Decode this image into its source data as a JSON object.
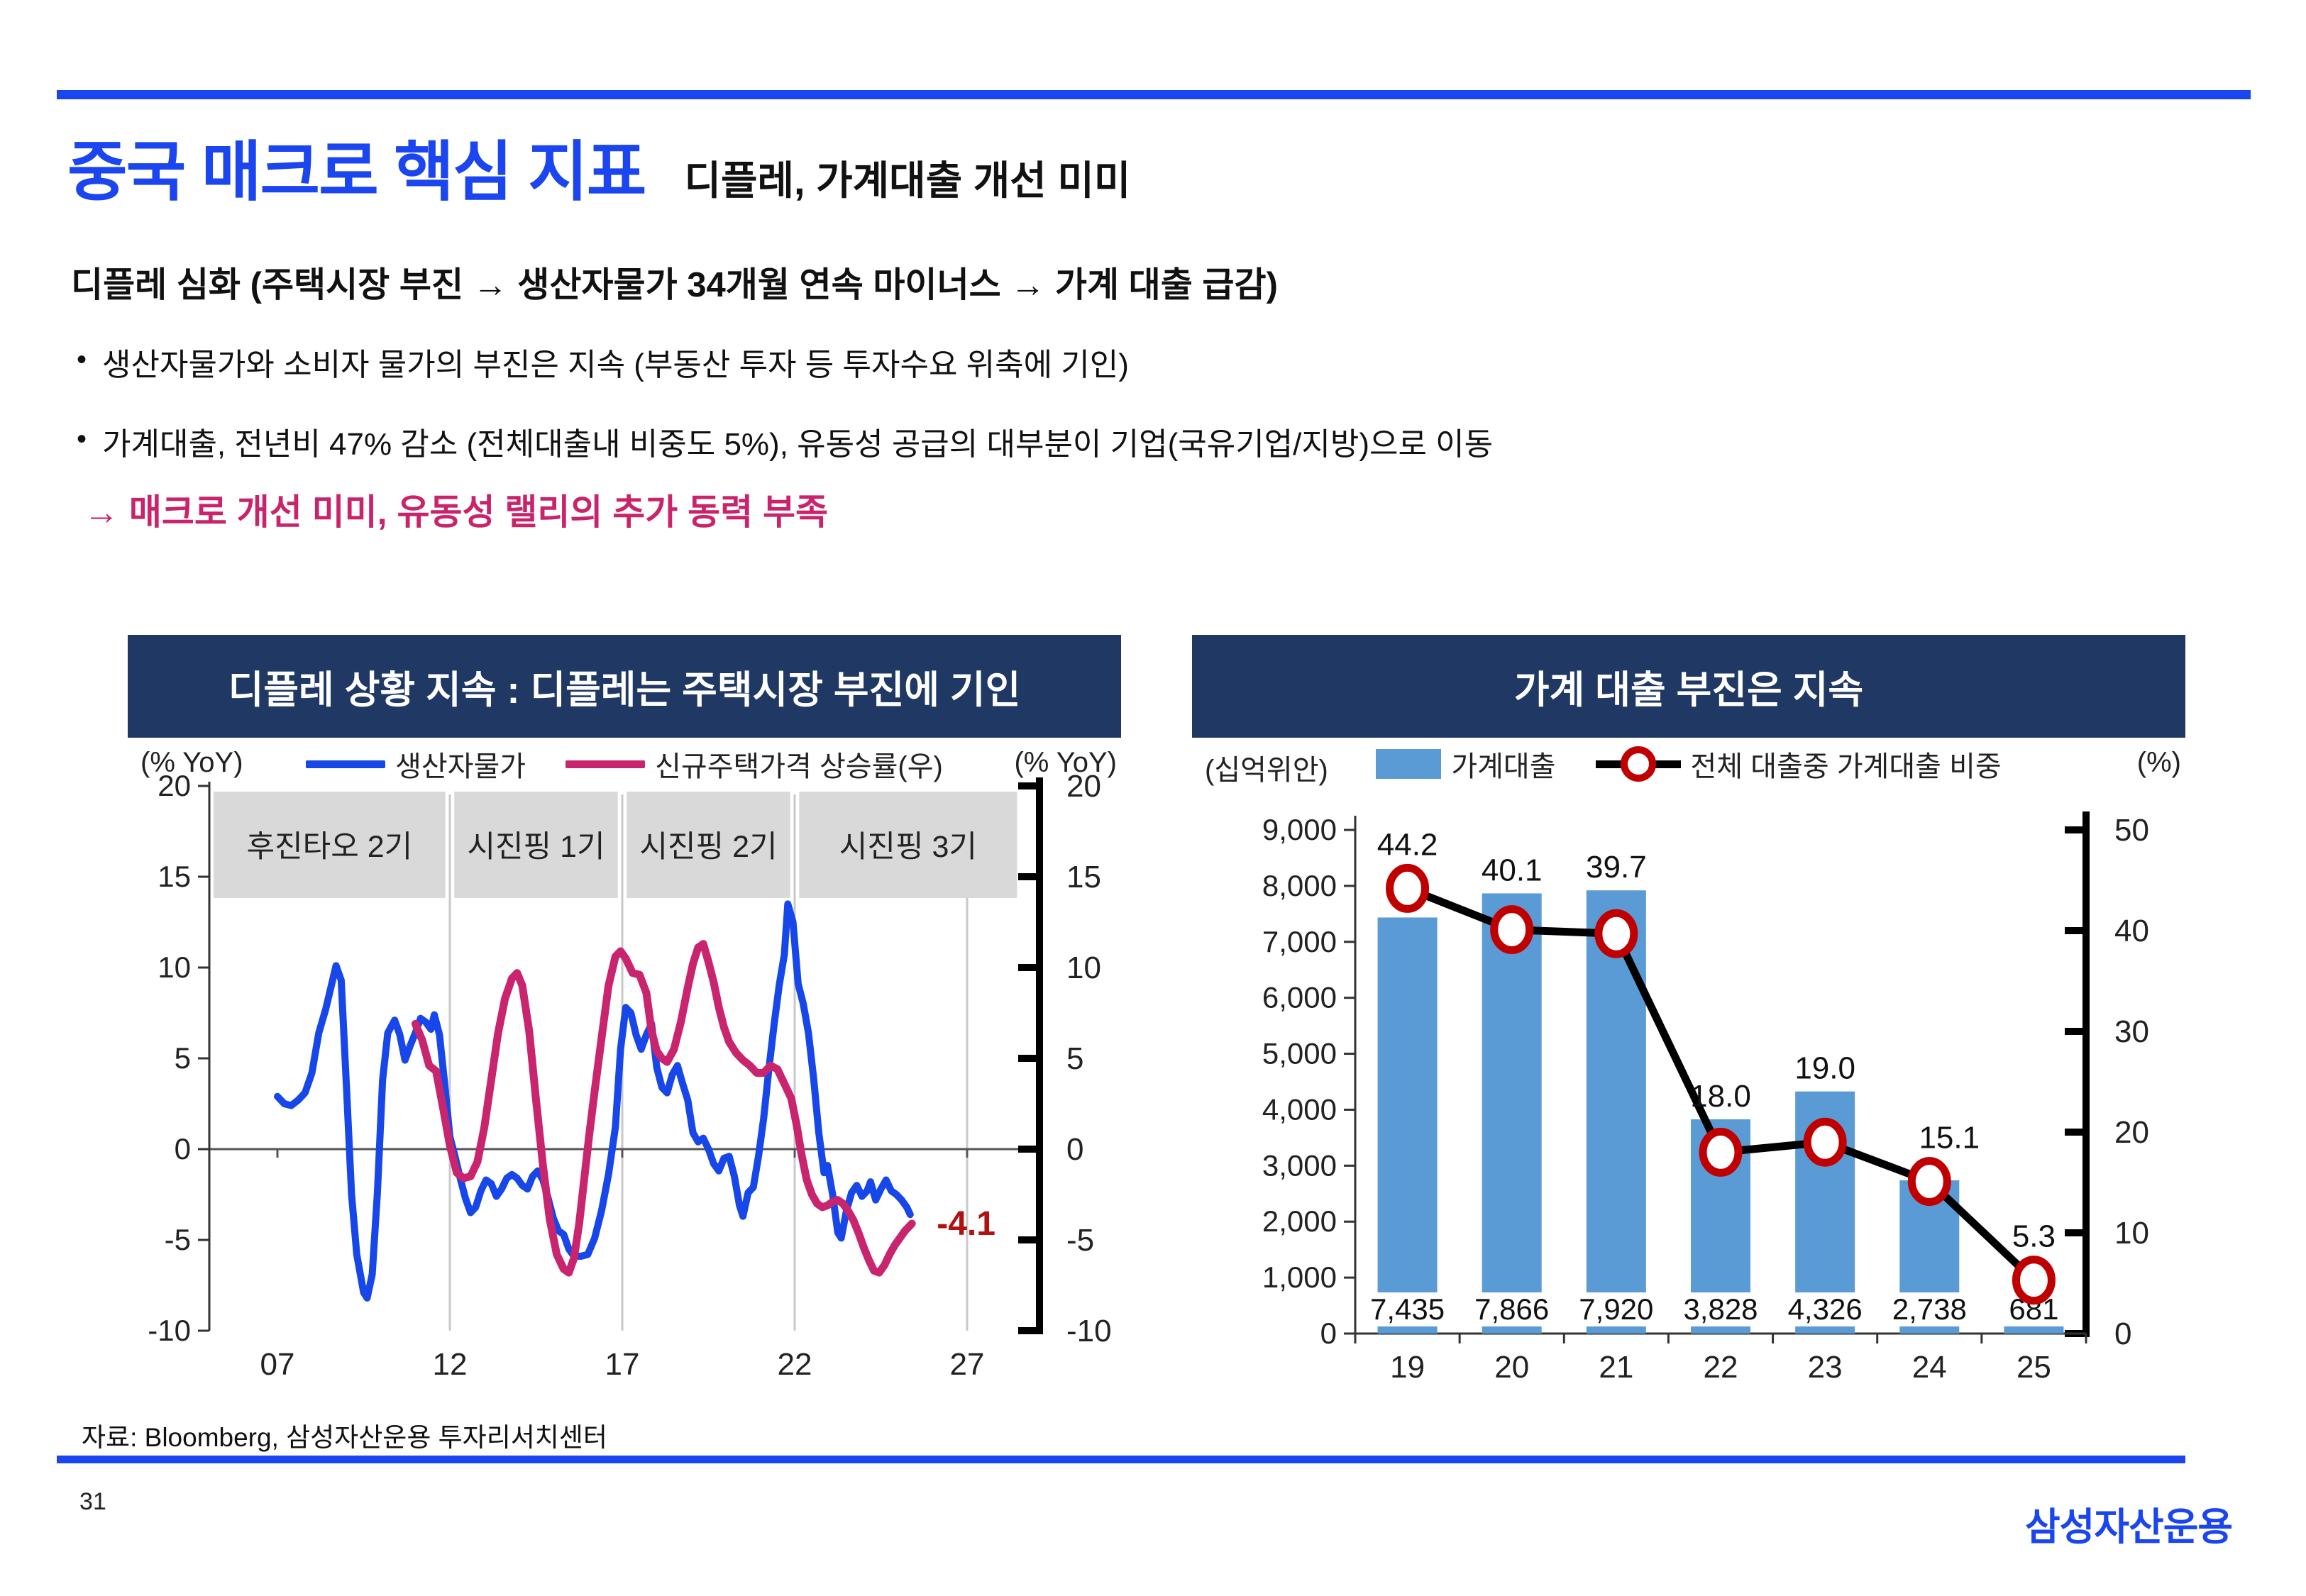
{
  "page": {
    "number": "31",
    "title": "중국 매크로 핵심 지표",
    "subtitle": "디플레, 가계대출 개선 미미",
    "heading": "디플레 심화 (주택시장 부진 → 생산자물가 34개월 연속 마이너스 → 가계 대출 급감)",
    "bullet_marker": "•",
    "bullets": [
      "생산자물가와 소비자 물가의 부진은 지속 (부동산 투자 등 투자수요 위축에 기인)",
      "가계대출, 전년비 47% 감소 (전체대출내 비중도 5%), 유동성 공급의 대부분이 기업(국유기업/지방)으로 이동"
    ],
    "arrow_note": "→ 매크로 개선 미미, 유동성 랠리의 추가 동력 부족",
    "source": "자료: Bloomberg, 삼성자산운용 투자리서치센터",
    "logo": "삼성자산운용"
  },
  "colors": {
    "accent_blue": "#1b45ee",
    "header_navy": "#203864",
    "ppi_blue": "#1747e8",
    "home_price_pink": "#c9246e",
    "bar_blue": "#5b9bd5",
    "marker_red": "#c00000",
    "grid_gray": "#c9c9c9",
    "band_gray": "#d9d9d9",
    "end_label_red": "#b01111"
  },
  "chart_data": [
    {
      "type": "line",
      "title": "디플레 상황 지속 : 디플레는 주택시장 부진에 기인",
      "unit_left": "(% YoY)",
      "unit_right": "(% YoY)",
      "ylim": [
        -10,
        20
      ],
      "y_ticks": [
        "20",
        "15",
        "10",
        "5",
        "0",
        "-5",
        "-10"
      ],
      "y_tick_values": [
        20,
        15,
        10,
        5,
        0,
        -5,
        -10
      ],
      "x_ticks": [
        "07",
        "12",
        "17",
        "22",
        "27"
      ],
      "x_tick_years": [
        2007,
        2012,
        2017,
        2022,
        2027
      ],
      "grid_years": [
        2012,
        2017,
        2022,
        2027
      ],
      "period_bands": [
        {
          "label": "후진타오 2기",
          "from": 2005.15,
          "to": 2011.87
        },
        {
          "label": "시진핑 1기",
          "from": 2012.13,
          "to": 2016.87
        },
        {
          "label": "시진핑 2기",
          "from": 2017.13,
          "to": 2021.87
        },
        {
          "label": "시진핑 3기",
          "from": 2022.13,
          "to": 2028.45
        }
      ],
      "series": [
        {
          "name": "생산자물가",
          "color": "#1747e8",
          "points": [
            [
              2007.0,
              2.9
            ],
            [
              2007.2,
              2.5
            ],
            [
              2007.4,
              2.4
            ],
            [
              2007.6,
              2.7
            ],
            [
              2007.8,
              3.1
            ],
            [
              2008.0,
              4.2
            ],
            [
              2008.2,
              6.4
            ],
            [
              2008.4,
              7.7
            ],
            [
              2008.55,
              8.9
            ],
            [
              2008.7,
              10.1
            ],
            [
              2008.85,
              9.3
            ],
            [
              2009.0,
              3.5
            ],
            [
              2009.15,
              -2.5
            ],
            [
              2009.3,
              -5.8
            ],
            [
              2009.5,
              -7.9
            ],
            [
              2009.6,
              -8.2
            ],
            [
              2009.75,
              -6.9
            ],
            [
              2009.9,
              -2.4
            ],
            [
              2010.05,
              3.8
            ],
            [
              2010.2,
              6.4
            ],
            [
              2010.4,
              7.1
            ],
            [
              2010.55,
              6.3
            ],
            [
              2010.7,
              4.9
            ],
            [
              2010.85,
              5.7
            ],
            [
              2011.0,
              6.4
            ],
            [
              2011.15,
              7.2
            ],
            [
              2011.3,
              7.0
            ],
            [
              2011.45,
              6.6
            ],
            [
              2011.55,
              7.4
            ],
            [
              2011.7,
              6.3
            ],
            [
              2011.85,
              3.6
            ],
            [
              2012.0,
              0.7
            ],
            [
              2012.15,
              -0.4
            ],
            [
              2012.3,
              -1.6
            ],
            [
              2012.45,
              -2.7
            ],
            [
              2012.6,
              -3.5
            ],
            [
              2012.75,
              -3.2
            ],
            [
              2012.9,
              -2.3
            ],
            [
              2013.05,
              -1.7
            ],
            [
              2013.2,
              -1.9
            ],
            [
              2013.35,
              -2.6
            ],
            [
              2013.5,
              -2.2
            ],
            [
              2013.65,
              -1.6
            ],
            [
              2013.8,
              -1.4
            ],
            [
              2013.95,
              -1.6
            ],
            [
              2014.1,
              -2.0
            ],
            [
              2014.25,
              -2.2
            ],
            [
              2014.4,
              -1.5
            ],
            [
              2014.55,
              -1.2
            ],
            [
              2014.7,
              -1.7
            ],
            [
              2014.85,
              -2.7
            ],
            [
              2015.0,
              -3.8
            ],
            [
              2015.15,
              -4.5
            ],
            [
              2015.3,
              -4.7
            ],
            [
              2015.45,
              -5.5
            ],
            [
              2015.6,
              -5.9
            ],
            [
              2015.8,
              -5.9
            ],
            [
              2016.0,
              -5.8
            ],
            [
              2016.2,
              -4.9
            ],
            [
              2016.4,
              -3.4
            ],
            [
              2016.6,
              -1.4
            ],
            [
              2016.8,
              1.2
            ],
            [
              2016.95,
              5.5
            ],
            [
              2017.1,
              7.8
            ],
            [
              2017.25,
              7.5
            ],
            [
              2017.4,
              6.3
            ],
            [
              2017.55,
              5.5
            ],
            [
              2017.7,
              6.3
            ],
            [
              2017.85,
              6.9
            ],
            [
              2018.0,
              4.5
            ],
            [
              2018.15,
              3.4
            ],
            [
              2018.3,
              3.1
            ],
            [
              2018.45,
              4.1
            ],
            [
              2018.6,
              4.6
            ],
            [
              2018.75,
              3.6
            ],
            [
              2018.9,
              2.7
            ],
            [
              2019.05,
              0.9
            ],
            [
              2019.2,
              0.4
            ],
            [
              2019.35,
              0.6
            ],
            [
              2019.5,
              0.0
            ],
            [
              2019.65,
              -0.8
            ],
            [
              2019.8,
              -1.2
            ],
            [
              2019.95,
              -0.5
            ],
            [
              2020.1,
              -0.4
            ],
            [
              2020.25,
              -1.5
            ],
            [
              2020.4,
              -3.1
            ],
            [
              2020.5,
              -3.7
            ],
            [
              2020.65,
              -2.4
            ],
            [
              2020.8,
              -2.1
            ],
            [
              2020.95,
              -0.4
            ],
            [
              2021.1,
              1.7
            ],
            [
              2021.25,
              4.4
            ],
            [
              2021.4,
              6.8
            ],
            [
              2021.55,
              9.0
            ],
            [
              2021.7,
              10.7
            ],
            [
              2021.8,
              13.5
            ],
            [
              2021.95,
              12.5
            ],
            [
              2022.1,
              9.1
            ],
            [
              2022.25,
              8.0
            ],
            [
              2022.4,
              6.4
            ],
            [
              2022.55,
              3.9
            ],
            [
              2022.7,
              0.9
            ],
            [
              2022.85,
              -1.3
            ],
            [
              2022.95,
              -0.9
            ],
            [
              2023.1,
              -2.5
            ],
            [
              2023.25,
              -4.6
            ],
            [
              2023.35,
              -4.9
            ],
            [
              2023.5,
              -3.4
            ],
            [
              2023.65,
              -2.4
            ],
            [
              2023.8,
              -2.0
            ],
            [
              2023.95,
              -2.6
            ],
            [
              2024.1,
              -2.3
            ],
            [
              2024.2,
              -1.8
            ],
            [
              2024.35,
              -2.8
            ],
            [
              2024.5,
              -2.2
            ],
            [
              2024.65,
              -1.7
            ],
            [
              2024.8,
              -2.3
            ],
            [
              2024.95,
              -2.5
            ],
            [
              2025.1,
              -2.8
            ],
            [
              2025.25,
              -3.2
            ],
            [
              2025.35,
              -3.6
            ]
          ]
        },
        {
          "name": "신규주택가격 상승률(우)",
          "color": "#c9246e",
          "points": [
            [
              2011.0,
              6.9
            ],
            [
              2011.2,
              6.0
            ],
            [
              2011.4,
              4.6
            ],
            [
              2011.6,
              4.3
            ],
            [
              2011.8,
              2.3
            ],
            [
              2012.0,
              0.2
            ],
            [
              2012.2,
              -1.3
            ],
            [
              2012.4,
              -1.6
            ],
            [
              2012.6,
              -1.5
            ],
            [
              2012.8,
              -0.7
            ],
            [
              2013.0,
              1.2
            ],
            [
              2013.2,
              3.8
            ],
            [
              2013.4,
              6.4
            ],
            [
              2013.6,
              8.3
            ],
            [
              2013.8,
              9.4
            ],
            [
              2013.95,
              9.7
            ],
            [
              2014.1,
              9.0
            ],
            [
              2014.3,
              6.5
            ],
            [
              2014.5,
              2.7
            ],
            [
              2014.7,
              -0.9
            ],
            [
              2014.9,
              -3.9
            ],
            [
              2015.1,
              -5.8
            ],
            [
              2015.3,
              -6.6
            ],
            [
              2015.45,
              -6.8
            ],
            [
              2015.6,
              -6.0
            ],
            [
              2015.75,
              -4.1
            ],
            [
              2015.9,
              -1.6
            ],
            [
              2016.05,
              0.9
            ],
            [
              2016.2,
              3.2
            ],
            [
              2016.4,
              6.1
            ],
            [
              2016.6,
              9.0
            ],
            [
              2016.8,
              10.6
            ],
            [
              2016.95,
              10.9
            ],
            [
              2017.1,
              10.5
            ],
            [
              2017.3,
              9.7
            ],
            [
              2017.5,
              9.6
            ],
            [
              2017.7,
              8.6
            ],
            [
              2017.85,
              6.5
            ],
            [
              2018.0,
              5.4
            ],
            [
              2018.15,
              5.0
            ],
            [
              2018.3,
              4.8
            ],
            [
              2018.5,
              5.5
            ],
            [
              2018.7,
              7.0
            ],
            [
              2018.9,
              8.9
            ],
            [
              2019.05,
              10.2
            ],
            [
              2019.2,
              11.1
            ],
            [
              2019.35,
              11.3
            ],
            [
              2019.5,
              10.3
            ],
            [
              2019.65,
              9.2
            ],
            [
              2019.8,
              7.8
            ],
            [
              2019.95,
              6.7
            ],
            [
              2020.1,
              5.9
            ],
            [
              2020.3,
              5.3
            ],
            [
              2020.5,
              4.9
            ],
            [
              2020.7,
              4.6
            ],
            [
              2020.9,
              4.2
            ],
            [
              2021.1,
              4.2
            ],
            [
              2021.3,
              4.6
            ],
            [
              2021.5,
              4.4
            ],
            [
              2021.7,
              3.6
            ],
            [
              2021.9,
              2.8
            ],
            [
              2022.05,
              1.4
            ],
            [
              2022.2,
              -0.3
            ],
            [
              2022.35,
              -1.7
            ],
            [
              2022.5,
              -2.5
            ],
            [
              2022.65,
              -3.0
            ],
            [
              2022.8,
              -3.2
            ],
            [
              2022.95,
              -3.1
            ],
            [
              2023.1,
              -2.9
            ],
            [
              2023.25,
              -2.8
            ],
            [
              2023.4,
              -3.0
            ],
            [
              2023.55,
              -3.4
            ],
            [
              2023.7,
              -3.9
            ],
            [
              2023.85,
              -4.6
            ],
            [
              2024.0,
              -5.4
            ],
            [
              2024.15,
              -6.1
            ],
            [
              2024.3,
              -6.7
            ],
            [
              2024.45,
              -6.8
            ],
            [
              2024.6,
              -6.4
            ],
            [
              2024.75,
              -5.8
            ],
            [
              2024.9,
              -5.3
            ],
            [
              2025.05,
              -4.9
            ],
            [
              2025.2,
              -4.5
            ],
            [
              2025.4,
              -4.1
            ]
          ]
        }
      ],
      "end_label": {
        "text": "-4.1",
        "value": -4.1,
        "year": 2025.75,
        "color": "#b01111"
      }
    },
    {
      "type": "bar+line",
      "title": "가계 대출 부진은 지속",
      "unit_left": "(십억위안)",
      "unit_right": "(%)",
      "categories": [
        "19",
        "20",
        "21",
        "22",
        "23",
        "24",
        "25"
      ],
      "bar_series": {
        "name": "가계대출",
        "color": "#5b9bd5",
        "values": [
          7435,
          7866,
          7920,
          3828,
          4326,
          2738,
          681
        ],
        "labels": [
          "7,435",
          "7,866",
          "7,920",
          "3,828",
          "4,326",
          "2,738",
          "681"
        ]
      },
      "line_series": {
        "name": "전체 대출중 가계대출 비중",
        "color": "#000000",
        "marker_color": "#c00000",
        "values": [
          44.2,
          40.1,
          39.7,
          18.0,
          19.0,
          15.1,
          5.3
        ],
        "labels": [
          "44.2",
          "40.1",
          "39.7",
          "18.0",
          "19.0",
          "15.1",
          "5.3"
        ]
      },
      "ylim_left": [
        0,
        9000
      ],
      "ylim_right": [
        0,
        50
      ],
      "y_ticks_left": [
        "9,000",
        "8,000",
        "7,000",
        "6,000",
        "5,000",
        "4,000",
        "3,000",
        "2,000",
        "1,000",
        "0"
      ],
      "y_tick_values_left": [
        9000,
        8000,
        7000,
        6000,
        5000,
        4000,
        3000,
        2000,
        1000,
        0
      ],
      "y_ticks_right": [
        "50",
        "40",
        "30",
        "20",
        "10",
        "0"
      ],
      "y_tick_values_right": [
        50,
        40,
        30,
        20,
        10,
        0
      ]
    }
  ]
}
